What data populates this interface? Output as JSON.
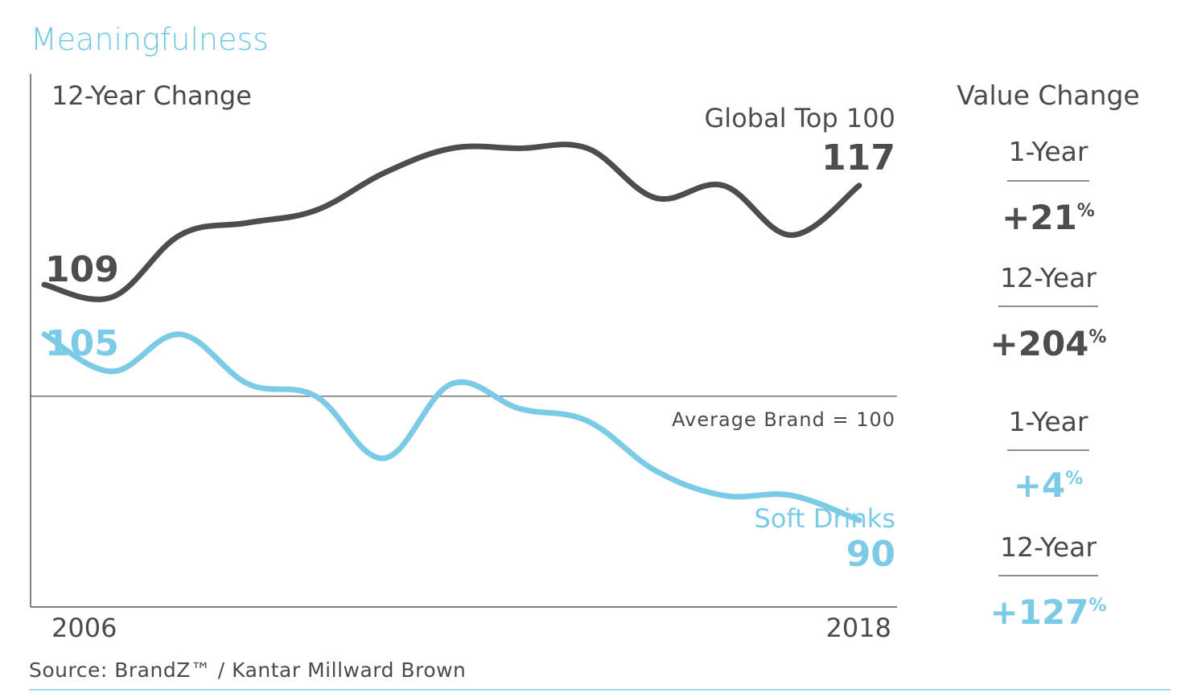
{
  "title": "Meaningfulness",
  "chart_data": {
    "type": "line",
    "subtitle": "12-Year Change",
    "x": [
      2006,
      2007,
      2008,
      2009,
      2010,
      2011,
      2012,
      2013,
      2014,
      2015,
      2016,
      2017,
      2018
    ],
    "xtick_labels": [
      "2006",
      "2018"
    ],
    "ylim": [
      83,
      126
    ],
    "reference_line": {
      "value": 100,
      "label": "Average Brand = 100"
    },
    "series": [
      {
        "name": "Global Top 100",
        "color": "#4d4d4d",
        "values": [
          109,
          108,
          113,
          114,
          115,
          118,
          120,
          120,
          120,
          116,
          117,
          113,
          117
        ],
        "start_label": "109",
        "end_label": "117"
      },
      {
        "name": "Soft Drinks",
        "color": "#7ccbe6",
        "values": [
          105,
          102,
          105,
          101,
          100,
          95,
          101,
          99,
          98,
          94,
          92,
          92,
          90
        ],
        "start_label": "105",
        "end_label": "90"
      }
    ]
  },
  "value_change": {
    "heading": "Value Change",
    "entries": [
      {
        "period": "1-Year",
        "value": "+21",
        "unit": "%",
        "color": "#4d4d4d"
      },
      {
        "period": "12-Year",
        "value": "+204",
        "unit": "%",
        "color": "#4d4d4d"
      },
      {
        "period": "1-Year",
        "value": "+4",
        "unit": "%",
        "color": "#7ccbe6"
      },
      {
        "period": "12-Year",
        "value": "+127",
        "unit": "%",
        "color": "#7ccbe6"
      }
    ]
  },
  "source": "Source: BrandZ™ / Kantar Millward Brown",
  "colors": {
    "accent": "#6cc8e4",
    "dark": "#4d4d4d",
    "axis": "#555555",
    "divider": "#9fd9ec"
  }
}
